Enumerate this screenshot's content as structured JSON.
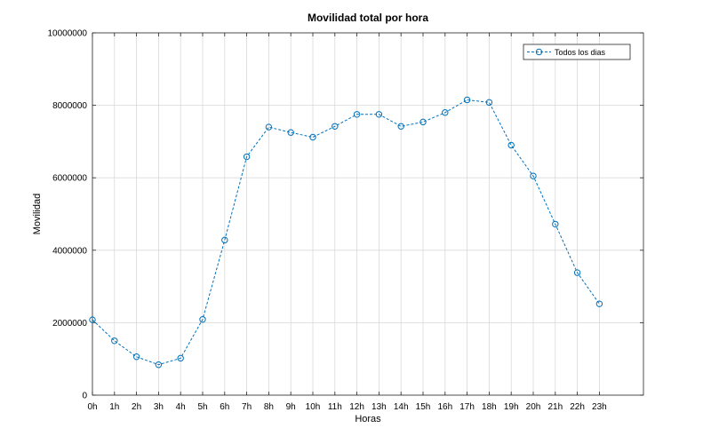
{
  "chart_data": {
    "type": "line",
    "title": "Movilidad total por hora",
    "xlabel": "Horas",
    "ylabel": "Movilidad",
    "categories": [
      "0h",
      "1h",
      "2h",
      "3h",
      "4h",
      "5h",
      "6h",
      "7h",
      "8h",
      "9h",
      "10h",
      "11h",
      "12h",
      "13h",
      "14h",
      "15h",
      "16h",
      "17h",
      "18h",
      "19h",
      "20h",
      "21h",
      "22h",
      "23h"
    ],
    "series": [
      {
        "name": "Todos los dias",
        "color": "#0072bd",
        "line_style": "dashed",
        "marker": "circle",
        "values": [
          2080000,
          1500000,
          1060000,
          840000,
          1020000,
          2090000,
          4280000,
          6580000,
          7400000,
          7250000,
          7120000,
          7420000,
          7750000,
          7750000,
          7420000,
          7540000,
          7800000,
          8150000,
          8080000,
          6900000,
          6050000,
          4720000,
          3380000,
          2520000
        ]
      }
    ],
    "ylim": [
      0,
      10000000
    ],
    "xlim": [
      0,
      25
    ],
    "y_ticks": [
      0,
      2000000,
      4000000,
      6000000,
      8000000,
      10000000
    ],
    "y_tick_labels": [
      "0",
      "2000000",
      "4000000",
      "6000000",
      "8000000",
      "10000000"
    ],
    "grid": true,
    "legend_position": "top-right"
  }
}
